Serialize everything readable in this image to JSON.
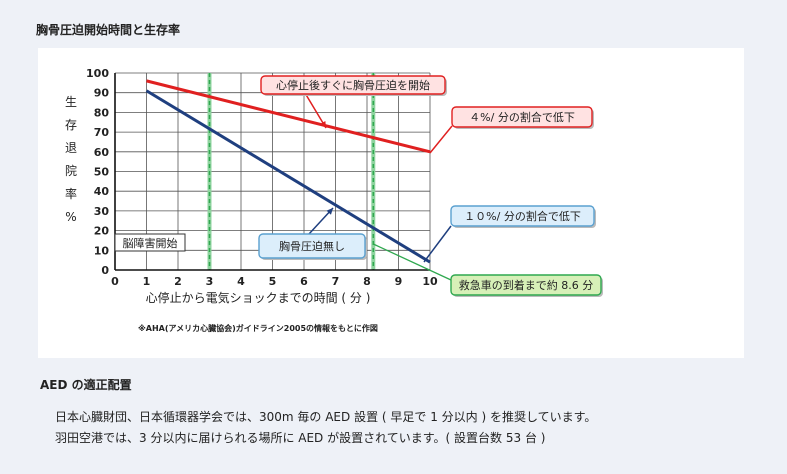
{
  "page": {
    "title": "胸骨圧迫開始時間と生存率",
    "section_heading": "AED の適正配置",
    "paragraphs": [
      "日本心臓財団、日本循環器学会では、300m 毎の AED 設置 ( 早足で 1 分以内 ) を推奨しています。",
      "羽田空港では、3 分以内に届けられる場所に AED が設置されています。( 設置台数 53 台 )"
    ]
  },
  "chart_data": {
    "type": "line",
    "xlabel": "心停止から電気ショックまでの時間 ( 分 )",
    "ylabel_chars": [
      "生",
      "存",
      "退",
      "院",
      "率",
      "%"
    ],
    "xlim": [
      0,
      10
    ],
    "ylim": [
      0,
      100
    ],
    "x_ticks": [
      "0",
      "1",
      "2",
      "3",
      "4",
      "5",
      "6",
      "7",
      "8",
      "9",
      "10"
    ],
    "y_ticks": [
      "0",
      "10",
      "20",
      "30",
      "40",
      "50",
      "60",
      "70",
      "80",
      "90",
      "100"
    ],
    "grid": true,
    "series": [
      {
        "name": "心停止後すぐに胸骨圧迫を開始",
        "color": "#e02020",
        "x": [
          1,
          10
        ],
        "y": [
          96,
          60
        ]
      },
      {
        "name": "胸骨圧迫無し",
        "color": "#1f3f7f",
        "x": [
          1,
          10
        ],
        "y": [
          91,
          4
        ]
      }
    ],
    "vlines": [
      {
        "x": 3,
        "label": "脳障害開始",
        "color": "#2fa84f"
      },
      {
        "x": 8.2,
        "label": "救急車の到着まで約 8.6 分",
        "color": "#2fa84f"
      }
    ],
    "annotations": [
      "心停止後すぐに胸骨圧迫を開始",
      "４%/ 分の割合で低下",
      "胸骨圧迫無し",
      "１０%/ 分の割合で低下",
      "脳障害開始",
      "救急車の到着まで約 8.6 分"
    ],
    "footnote": "※AHA(アメリカ心臓協会)ガイドライン2005の情報をもとに作図"
  }
}
